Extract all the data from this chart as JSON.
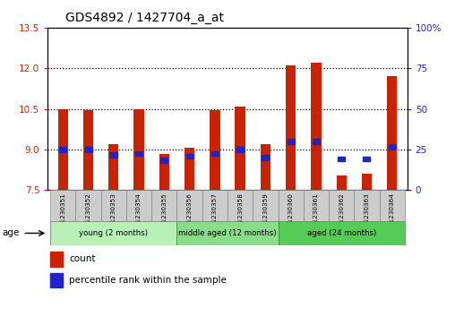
{
  "title": "GDS4892 / 1427704_a_at",
  "samples": [
    "GSM1230351",
    "GSM1230352",
    "GSM1230353",
    "GSM1230354",
    "GSM1230355",
    "GSM1230356",
    "GSM1230357",
    "GSM1230358",
    "GSM1230359",
    "GSM1230360",
    "GSM1230361",
    "GSM1230362",
    "GSM1230363",
    "GSM1230364"
  ],
  "red_values": [
    10.5,
    10.45,
    9.2,
    10.5,
    8.85,
    9.05,
    10.45,
    10.6,
    9.2,
    12.1,
    12.2,
    8.05,
    8.1,
    11.7
  ],
  "blue_values": [
    9.0,
    9.0,
    8.8,
    8.85,
    8.6,
    8.75,
    8.85,
    9.0,
    8.7,
    9.3,
    9.3,
    8.65,
    8.65,
    9.1
  ],
  "ymin": 7.5,
  "ymax": 13.5,
  "yticks_left": [
    7.5,
    9.0,
    10.5,
    12.0,
    13.5
  ],
  "yticks_right_vals": [
    0,
    25,
    50,
    75,
    100
  ],
  "yticks_right_labels": [
    "0",
    "25",
    "50",
    "75",
    "100%"
  ],
  "bar_color": "#cc2200",
  "blue_color": "#2222cc",
  "dotted_lines": [
    9.0,
    10.5,
    12.0
  ],
  "group_labels": [
    "young (2 months)",
    "middle aged (12 months)",
    "aged (24 months)"
  ],
  "group_ranges": [
    [
      0,
      5
    ],
    [
      5,
      9
    ],
    [
      9,
      14
    ]
  ],
  "group_colors": [
    "#b8f0b8",
    "#88dd88",
    "#55cc55"
  ],
  "sample_bg_color": "#cccccc",
  "legend_red_label": "count",
  "legend_blue_label": "percentile rank within the sample"
}
